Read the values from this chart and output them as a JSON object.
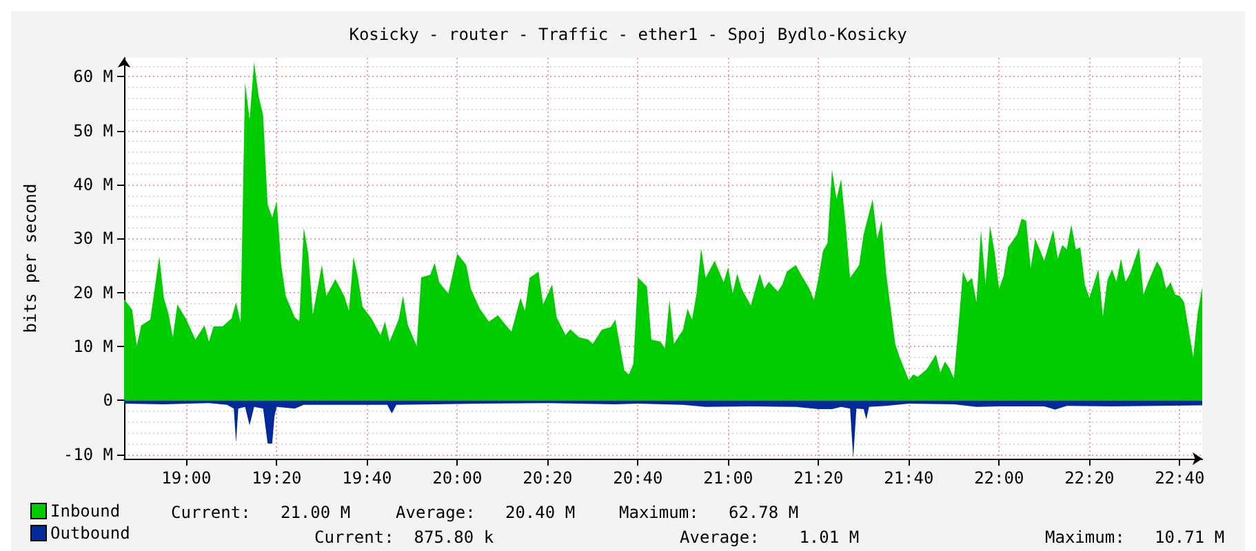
{
  "chart_data": {
    "type": "area",
    "title": "Kosicky - router - Traffic - ether1 - Spoj Bydlo-Kosicky",
    "ylabel": "bits per second",
    "xlim": [
      18.77,
      22.75
    ],
    "xticks": [
      {
        "value": 19,
        "label": "19:00"
      },
      {
        "value": 19.3333,
        "label": "19:20"
      },
      {
        "value": 19.6667,
        "label": "19:40"
      },
      {
        "value": 20,
        "label": "20:00"
      },
      {
        "value": 20.3333,
        "label": "20:20"
      },
      {
        "value": 20.6667,
        "label": "20:40"
      },
      {
        "value": 21,
        "label": "21:00"
      },
      {
        "value": 21.3333,
        "label": "21:20"
      },
      {
        "value": 21.6667,
        "label": "21:40"
      },
      {
        "value": 22,
        "label": "22:00"
      },
      {
        "value": 22.3333,
        "label": "22:20"
      },
      {
        "value": 22.6667,
        "label": "22:40"
      }
    ],
    "ylim": [
      -10.8,
      63.5
    ],
    "yticks": [
      {
        "value": -10,
        "label": "-10 M"
      },
      0,
      {
        "value": 10,
        "label": "10 M"
      },
      {
        "value": 20,
        "label": "20 M"
      },
      {
        "value": 30,
        "label": "30 M"
      },
      {
        "value": 40,
        "label": "40 M"
      },
      {
        "value": 50,
        "label": "50 M"
      },
      {
        "value": 60,
        "label": "60 M"
      }
    ],
    "grid": true,
    "legend": "bottom left",
    "annotations": [
      "Current:   21.00 M",
      "Average:   20.40 M",
      "Maximum:   62.78 M",
      "Current:  875.80 k",
      "Average:    1.01 M",
      "Maximum:   10.71 M"
    ],
    "series": [
      {
        "name": "Inbound",
        "color": "#00cc00",
        "x": [
          18.77,
          18.8,
          18.8167,
          18.8333,
          18.8667,
          18.9,
          18.9167,
          18.9333,
          18.95,
          18.9667,
          19,
          19.0333,
          19.0667,
          19.0833,
          19.1,
          19.1333,
          19.1667,
          19.1833,
          19.2,
          19.2167,
          19.2333,
          19.25,
          19.2667,
          19.2833,
          19.3,
          19.3167,
          19.3333,
          19.35,
          19.3667,
          19.4,
          19.4167,
          19.4333,
          19.45,
          19.4667,
          19.5,
          19.5167,
          19.55,
          19.5833,
          19.6,
          19.6167,
          19.6333,
          19.65,
          19.6833,
          19.7167,
          19.7333,
          19.75,
          19.7833,
          19.8,
          19.8167,
          19.85,
          19.8667,
          19.9,
          19.9167,
          19.9333,
          19.9667,
          20,
          20.0333,
          20.05,
          20.0833,
          20.1167,
          20.15,
          20.1833,
          20.2,
          20.2333,
          20.25,
          20.2667,
          20.3,
          20.3167,
          20.35,
          20.3667,
          20.4,
          20.4167,
          20.45,
          20.4833,
          20.5,
          20.5333,
          20.5667,
          20.5833,
          20.6167,
          20.6333,
          20.65,
          20.6667,
          20.7,
          20.7167,
          20.75,
          20.7667,
          20.7833,
          20.8,
          20.8333,
          20.85,
          20.8667,
          20.8833,
          20.9,
          20.9167,
          20.95,
          20.9833,
          21,
          21.0167,
          21.0333,
          21.05,
          21.0833,
          21.1167,
          21.1333,
          21.15,
          21.1833,
          21.2,
          21.2167,
          21.25,
          21.2667,
          21.3,
          21.3167,
          21.3333,
          21.35,
          21.3667,
          21.3833,
          21.4,
          21.4167,
          21.4333,
          21.45,
          21.4833,
          21.5,
          21.5333,
          21.55,
          21.5667,
          21.5833,
          21.6167,
          21.6333,
          21.6667,
          21.6833,
          21.7,
          21.7333,
          21.7667,
          21.7833,
          21.8,
          21.8167,
          21.8333,
          21.85,
          21.8667,
          21.8833,
          21.9,
          21.9167,
          21.9333,
          21.95,
          21.9667,
          21.9833,
          22,
          22.0167,
          22.0333,
          22.0667,
          22.0833,
          22.1,
          22.1167,
          22.1333,
          22.15,
          22.1667,
          22.2,
          22.2167,
          22.2333,
          22.25,
          22.2667,
          22.2833,
          22.3,
          22.3167,
          22.3333,
          22.3667,
          22.3833,
          22.4,
          22.4167,
          22.4333,
          22.45,
          22.4667,
          22.4833,
          22.5167,
          22.5333,
          22.55,
          22.5833,
          22.6,
          22.6167,
          22.6333,
          22.65,
          22.6667,
          22.6833,
          22.7167,
          22.7333,
          22.75
        ],
        "values": [
          18.8,
          16.8,
          10.1,
          13.9,
          15,
          26.7,
          19,
          16.2,
          11.7,
          17.8,
          15,
          11.3,
          13.9,
          10.9,
          13.7,
          13.7,
          15.2,
          18.2,
          14.4,
          58.9,
          52.1,
          62.7,
          56.4,
          52.8,
          36.3,
          33.9,
          36.9,
          25.1,
          19.4,
          15.4,
          14.7,
          32,
          27.2,
          15.9,
          25.1,
          19.4,
          22.5,
          19.3,
          16.6,
          26.6,
          22.8,
          17.4,
          15.2,
          12.1,
          14.6,
          10.9,
          15,
          19.4,
          14.1,
          10.1,
          22.8,
          23.3,
          25.5,
          21.9,
          19.8,
          27.2,
          25.1,
          20.7,
          17,
          14.6,
          15.8,
          13.7,
          12.8,
          19,
          16.6,
          22.7,
          23.9,
          17.8,
          21.5,
          15.4,
          12.1,
          13.2,
          11.7,
          11.3,
          10.5,
          13.1,
          13.6,
          15,
          5.6,
          4.8,
          6.8,
          22.8,
          21.1,
          11.3,
          10.9,
          9.7,
          18.6,
          10.5,
          13.1,
          17,
          15,
          19.8,
          28.2,
          22.7,
          25.9,
          21.9,
          24.7,
          19.8,
          23.5,
          20.7,
          17.6,
          23.5,
          20.7,
          22,
          20.2,
          21.5,
          23.9,
          25.1,
          23.5,
          20.7,
          18.6,
          22.7,
          27.7,
          29.2,
          42.8,
          37.3,
          41,
          32.8,
          22.7,
          25.1,
          30.8,
          37.3,
          30,
          33.3,
          23.5,
          10.5,
          8,
          3.8,
          4.8,
          4.4,
          5.8,
          8.5,
          5.2,
          7.2,
          6,
          4.1,
          13.7,
          23.9,
          21.9,
          22.7,
          18.2,
          31.6,
          21.5,
          32.4,
          27.6,
          20.7,
          23.1,
          28.4,
          30.8,
          33.7,
          33.3,
          24.5,
          30,
          28,
          25.9,
          31.6,
          26.3,
          28.8,
          28,
          32.6,
          28,
          28.4,
          21.5,
          19,
          24.3,
          15.6,
          22.3,
          24.3,
          22,
          26.3,
          22,
          23.5,
          28.4,
          19.6,
          21.9,
          25.8,
          24.3,
          20.7,
          21.9,
          19.6,
          19.4,
          18.2,
          8,
          16.2,
          21
        ]
      },
      {
        "name": "Outbound",
        "color": "#002a97",
        "x": [
          18.77,
          18.9167,
          19.0833,
          19.15,
          19.175,
          19.1833,
          19.1917,
          19.2167,
          19.2333,
          19.25,
          19.2833,
          19.3,
          19.3167,
          19.325,
          19.3333,
          19.4,
          19.4333,
          19.5833,
          19.7417,
          19.7583,
          19.775,
          19.9167,
          20.0833,
          20.3333,
          20.5833,
          20.6667,
          20.8333,
          20.9167,
          21.0833,
          21.25,
          21.3333,
          21.3833,
          21.4167,
          21.45,
          21.4617,
          21.4733,
          21.5,
          21.51,
          21.52,
          21.5833,
          21.6667,
          21.8333,
          21.9167,
          22,
          22.1667,
          22.2067,
          22.25,
          22.4167,
          22.5833,
          22.75
        ],
        "values": [
          -0.6,
          -0.7,
          -0.5,
          -0.8,
          -1.5,
          -7.8,
          -1.5,
          -1.2,
          -4.6,
          -1.2,
          -1.5,
          -8,
          -8,
          -3,
          -1.2,
          -1.5,
          -0.8,
          -0.8,
          -0.8,
          -2.4,
          -0.8,
          -0.7,
          -0.6,
          -0.5,
          -0.7,
          -0.6,
          -0.8,
          -1.2,
          -1.1,
          -1.2,
          -1.6,
          -1.6,
          -1.2,
          -1.5,
          -10.7,
          -1.5,
          -1.6,
          -3.5,
          -1.2,
          -1,
          -0.6,
          -0.7,
          -1.2,
          -1.1,
          -1.1,
          -1.7,
          -1,
          -1.1,
          -1,
          -0.9
        ]
      }
    ]
  }
}
